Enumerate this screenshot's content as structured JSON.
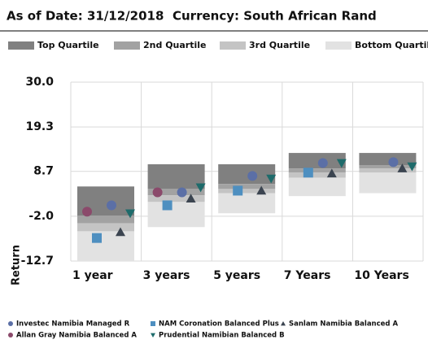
{
  "chart_data": {
    "type": "quartile",
    "title": "As of Date: 31/12/2018",
    "subtitle": "Currency: South African Rand",
    "y_label": "Return",
    "categories": [
      "1 year",
      "3 years",
      "5 years",
      "7 Years",
      "10 Years"
    ],
    "ylim": [
      -12.7,
      30.0
    ],
    "yticks": [
      {
        "value": 30,
        "label": "30.0"
      },
      19.3,
      8.7,
      {
        "value": -2,
        "label": "-2.0"
      },
      -12.7
    ],
    "grid": true,
    "quartiles": [
      {
        "name": "Top Quartile",
        "color": "#808080",
        "ranges": [
          [
            -1.9,
            5.1
          ],
          [
            4.5,
            10.4
          ],
          [
            5.7,
            10.4
          ],
          [
            9.4,
            13.1
          ],
          [
            10.2,
            13.1
          ]
        ]
      },
      {
        "name": "2nd Quartile",
        "color": "#a2a2a2",
        "ranges": [
          [
            -3.7,
            -1.9
          ],
          [
            3.0,
            4.5
          ],
          [
            4.5,
            5.7
          ],
          [
            8.4,
            9.4
          ],
          [
            9.4,
            10.2
          ]
        ]
      },
      {
        "name": "3rd Quartile",
        "color": "#c4c4c4",
        "ranges": [
          [
            -5.6,
            -3.7
          ],
          [
            1.4,
            3.0
          ],
          [
            3.5,
            4.5
          ],
          [
            7.2,
            8.4
          ],
          [
            8.4,
            9.4
          ]
        ]
      },
      {
        "name": "Bottom Quartile",
        "color": "#e2e2e2",
        "ranges": [
          [
            -12.7,
            -5.6
          ],
          [
            -4.6,
            1.4
          ],
          [
            -1.3,
            3.5
          ],
          [
            2.8,
            7.2
          ],
          [
            3.5,
            8.4
          ]
        ]
      }
    ],
    "series": [
      {
        "name": "Investec Namibia Managed R",
        "color": "#5b6fa6",
        "marker": "circle",
        "values": [
          0.6,
          3.7,
          7.6,
          10.7,
          10.9
        ]
      },
      {
        "name": "NAM Coronation Balanced Plus",
        "color": "#4e8fc0",
        "marker": "square",
        "values": [
          -7.2,
          0.6,
          4.1,
          8.4,
          null
        ]
      },
      {
        "name": "Sanlam Namibia Balanced A",
        "color": "#3b4450",
        "marker": "triangle",
        "values": [
          -5.8,
          2.2,
          4.1,
          8.2,
          9.4
        ]
      },
      {
        "name": "Allan Gray Namibia Balanced A",
        "color": "#8b4a6b",
        "marker": "circle",
        "values": [
          -0.9,
          3.7,
          null,
          null,
          null
        ]
      },
      {
        "name": "Prudential Namibian Balanced B",
        "color": "#1e6b6b",
        "marker": "triangle-down",
        "values": [
          -1.3,
          4.9,
          7.0,
          10.7,
          9.9
        ]
      }
    ]
  }
}
